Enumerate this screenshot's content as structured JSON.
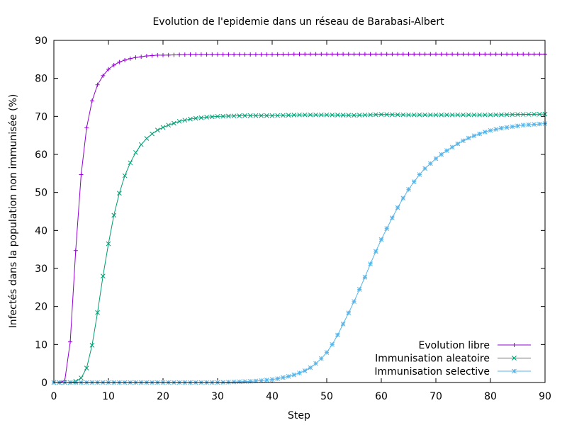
{
  "chart_data": {
    "type": "line",
    "title": "Evolution de l'epidemie dans un réseau de Barabasi-Albert",
    "xlabel": "Step",
    "ylabel": "Infectés dans la population non immunisée (%)",
    "xlim": [
      0,
      90
    ],
    "ylim": [
      0,
      90
    ],
    "xticks": [
      "0",
      "10",
      "20",
      "30",
      "40",
      "50",
      "60",
      "70",
      "80",
      "90"
    ],
    "yticks": [
      "0",
      "10",
      "20",
      "30",
      "40",
      "50",
      "60",
      "70",
      "80",
      "90"
    ],
    "grid": false,
    "legend_position": "bottom-right",
    "series": [
      {
        "name": "Evolution libre",
        "color": "#9400d3",
        "marker": "plus",
        "x": [
          0,
          1,
          2,
          3,
          4,
          5,
          6,
          7,
          8,
          9,
          10,
          11,
          12,
          13,
          14,
          15,
          16,
          17,
          18,
          19,
          20,
          25,
          30,
          35,
          40,
          45,
          50,
          55,
          60,
          65,
          70,
          75,
          80,
          85,
          90
        ],
        "y": [
          0,
          0,
          0.5,
          10.7,
          34.7,
          54.7,
          67,
          74.1,
          78.3,
          80.7,
          82.4,
          83.5,
          84.3,
          84.8,
          85.2,
          85.5,
          85.7,
          85.9,
          86,
          86.1,
          86.1,
          86.3,
          86.3,
          86.3,
          86.3,
          86.4,
          86.4,
          86.4,
          86.4,
          86.4,
          86.4,
          86.4,
          86.4,
          86.4,
          86.4
        ]
      },
      {
        "name": "Immunisation aleatoire",
        "color": "#009e73",
        "marker": "cross",
        "x": [
          0,
          1,
          2,
          3,
          4,
          5,
          6,
          7,
          8,
          9,
          10,
          11,
          12,
          13,
          14,
          15,
          16,
          17,
          18,
          19,
          20,
          21,
          22,
          23,
          24,
          25,
          26,
          28,
          30,
          35,
          40,
          45,
          50,
          55,
          60,
          65,
          70,
          75,
          80,
          85,
          90
        ],
        "y": [
          0,
          0,
          0,
          0,
          0.3,
          1.2,
          3.8,
          9.8,
          18.4,
          28,
          36.5,
          44,
          49.8,
          54.4,
          57.8,
          60.5,
          62.6,
          64.2,
          65.4,
          66.4,
          67.1,
          67.7,
          68.2,
          68.7,
          69,
          69.3,
          69.5,
          69.8,
          70,
          70.2,
          70.2,
          70.4,
          70.4,
          70.3,
          70.5,
          70.4,
          70.4,
          70.4,
          70.4,
          70.5,
          70.6
        ]
      },
      {
        "name": "Immunisation selective",
        "color": "#56b4e9",
        "marker": "star",
        "x": [
          0,
          5,
          10,
          15,
          20,
          25,
          30,
          32,
          34,
          36,
          38,
          40,
          41,
          42,
          43,
          44,
          45,
          46,
          47,
          48,
          49,
          50,
          51,
          52,
          53,
          54,
          55,
          56,
          57,
          58,
          59,
          60,
          61,
          62,
          63,
          64,
          65,
          66,
          67,
          68,
          69,
          70,
          71,
          72,
          73,
          74,
          75,
          76,
          77,
          78,
          79,
          80,
          81,
          82,
          83,
          84,
          85,
          86,
          87,
          88,
          89,
          90
        ],
        "y": [
          0,
          0,
          0,
          0,
          0,
          0,
          0,
          0.1,
          0.2,
          0.3,
          0.5,
          0.8,
          1,
          1.3,
          1.6,
          2,
          2.5,
          3.1,
          3.9,
          5,
          6.3,
          7.9,
          10,
          12.5,
          15.4,
          18.3,
          21.3,
          24.5,
          27.7,
          31.2,
          34.5,
          37.6,
          40.5,
          43.3,
          46,
          48.5,
          50.8,
          52.8,
          54.7,
          56.3,
          57.6,
          58.9,
          60,
          61,
          61.9,
          62.8,
          63.6,
          64.3,
          64.9,
          65.4,
          65.9,
          66.3,
          66.6,
          66.9,
          67.1,
          67.3,
          67.5,
          67.7,
          67.8,
          67.9,
          68,
          68.1
        ]
      }
    ]
  }
}
